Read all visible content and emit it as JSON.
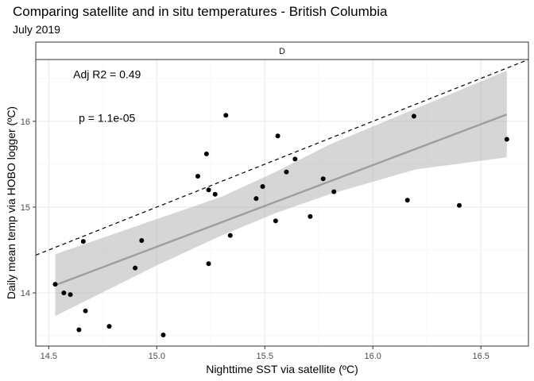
{
  "chart_data": {
    "type": "scatter",
    "title": "Comparing satellite and in situ temperatures - British Columbia",
    "subtitle": "July 2019",
    "facet_label": "D",
    "xlabel": "Nighttime SST via satellite (ºC)",
    "ylabel": "Daily mean temp via HOBO logger (ºC)",
    "xlim": [
      14.44,
      16.72
    ],
    "ylim": [
      13.38,
      16.72
    ],
    "x_ticks": [
      14.5,
      15.0,
      15.5,
      16.0,
      16.5
    ],
    "x_tick_labels": [
      "14.5",
      "15.0",
      "15.5",
      "16.0",
      "16.5"
    ],
    "y_ticks": [
      14,
      15,
      16
    ],
    "y_tick_labels": [
      "14",
      "15",
      "16"
    ],
    "grid": true,
    "annotations": [
      {
        "text": "Adj R2 = 0.49",
        "x": 14.77,
        "y": 16.55
      },
      {
        "text": "p = 1.1e-05",
        "x": 14.77,
        "y": 16.04
      }
    ],
    "identity_line": {
      "x": [
        14.44,
        16.72
      ],
      "y": [
        14.44,
        16.72
      ],
      "style": "dashed"
    },
    "regression_line": {
      "x": [
        14.53,
        16.62
      ],
      "y": [
        14.09,
        16.08
      ]
    },
    "confidence_band": {
      "x": [
        14.53,
        15.0,
        15.3,
        15.55,
        15.8,
        16.2,
        16.62
      ],
      "lower": [
        13.73,
        14.32,
        14.67,
        14.93,
        15.15,
        15.44,
        15.58
      ],
      "upper": [
        14.45,
        14.86,
        15.12,
        15.41,
        15.73,
        16.15,
        16.59
      ]
    },
    "points": [
      {
        "x": 14.53,
        "y": 14.1
      },
      {
        "x": 14.57,
        "y": 14.0
      },
      {
        "x": 14.6,
        "y": 13.98
      },
      {
        "x": 14.64,
        "y": 13.57
      },
      {
        "x": 14.66,
        "y": 14.6
      },
      {
        "x": 14.67,
        "y": 13.79
      },
      {
        "x": 14.78,
        "y": 13.61
      },
      {
        "x": 14.9,
        "y": 14.29
      },
      {
        "x": 14.93,
        "y": 14.61
      },
      {
        "x": 15.03,
        "y": 13.51
      },
      {
        "x": 15.19,
        "y": 15.36
      },
      {
        "x": 15.23,
        "y": 15.62
      },
      {
        "x": 15.24,
        "y": 15.2
      },
      {
        "x": 15.24,
        "y": 14.34
      },
      {
        "x": 15.27,
        "y": 15.15
      },
      {
        "x": 15.32,
        "y": 16.07
      },
      {
        "x": 15.34,
        "y": 14.67
      },
      {
        "x": 15.46,
        "y": 15.1
      },
      {
        "x": 15.49,
        "y": 15.24
      },
      {
        "x": 15.55,
        "y": 14.84
      },
      {
        "x": 15.56,
        "y": 15.83
      },
      {
        "x": 15.6,
        "y": 15.41
      },
      {
        "x": 15.64,
        "y": 15.56
      },
      {
        "x": 15.71,
        "y": 14.89
      },
      {
        "x": 15.77,
        "y": 15.33
      },
      {
        "x": 15.82,
        "y": 15.18
      },
      {
        "x": 16.16,
        "y": 15.08
      },
      {
        "x": 16.19,
        "y": 16.06
      },
      {
        "x": 16.4,
        "y": 15.02
      },
      {
        "x": 16.62,
        "y": 15.79
      }
    ]
  }
}
